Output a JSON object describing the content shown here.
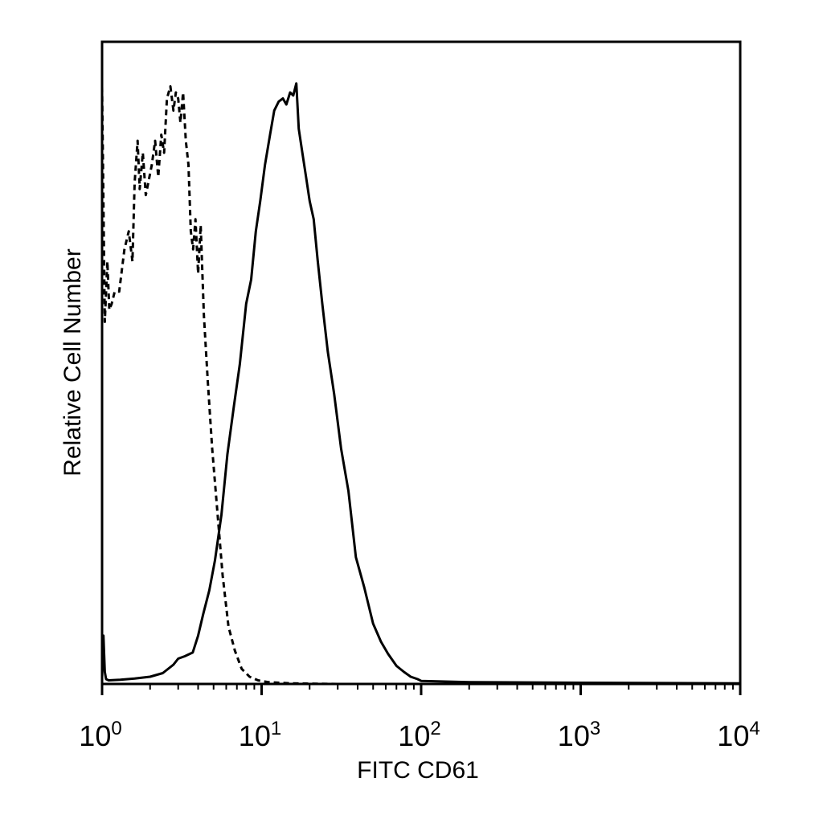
{
  "chart_data": {
    "type": "line",
    "title": "",
    "xlabel": "FITC CD61",
    "ylabel": "Relative Cell Number",
    "x_scale": "log",
    "xlim": [
      1,
      10000
    ],
    "ylim": [
      0,
      100
    ],
    "grid": false,
    "legend": "none",
    "x_ticks": [
      {
        "base": "10",
        "exp": "0",
        "value": 1
      },
      {
        "base": "10",
        "exp": "1",
        "value": 10
      },
      {
        "base": "10",
        "exp": "2",
        "value": 100
      },
      {
        "base": "10",
        "exp": "3",
        "value": 1000
      },
      {
        "base": "10",
        "exp": "4",
        "value": 10000
      }
    ],
    "series": [
      {
        "style": "dashed",
        "color": "#000000",
        "x": [
          1.0,
          1.04,
          1.08,
          1.11,
          1.15,
          1.2,
          1.28,
          1.38,
          1.47,
          1.55,
          1.6,
          1.67,
          1.72,
          1.8,
          1.88,
          1.98,
          2.05,
          2.15,
          2.25,
          2.35,
          2.45,
          2.55,
          2.68,
          2.8,
          2.9,
          3.0,
          3.1,
          3.22,
          3.35,
          3.48,
          3.6,
          3.72,
          3.85,
          4.0,
          4.15,
          4.35,
          4.6,
          4.9,
          5.3,
          5.7,
          6.2,
          6.8,
          7.5,
          8.4,
          9.5,
          11,
          13,
          15,
          20,
          30,
          40,
          60,
          100,
          1000,
          10000
        ],
        "y": [
          99,
          60,
          70,
          62,
          63,
          65,
          65,
          72,
          75,
          70,
          83,
          90,
          82,
          88,
          81,
          84,
          86,
          90,
          84,
          91,
          88,
          97,
          99,
          95,
          98,
          97,
          93,
          98,
          90,
          86,
          75,
          72,
          77,
          68,
          76,
          61,
          50,
          39,
          28,
          18,
          9.5,
          5.5,
          2.5,
          1.2,
          0.6,
          0.3,
          0.2,
          0.1,
          0.05,
          0,
          0,
          0,
          0,
          0,
          0
        ]
      },
      {
        "style": "solid",
        "color": "#000000",
        "x": [
          1.0,
          1.02,
          1.04,
          1.06,
          1.1,
          1.3,
          1.6,
          2.0,
          2.4,
          2.8,
          3.0,
          3.3,
          3.7,
          4.0,
          4.3,
          4.7,
          5.1,
          5.6,
          6.1,
          6.7,
          7.3,
          8.0,
          8.6,
          9.2,
          9.8,
          10.5,
          11.3,
          12.0,
          12.8,
          13.6,
          14.3,
          15.1,
          15.8,
          16.5,
          17.1,
          18.0,
          19.0,
          20.0,
          21.2,
          22.5,
          24.0,
          26.0,
          28.5,
          31.5,
          35,
          39,
          44,
          50,
          56,
          62,
          70,
          78,
          86,
          95,
          100,
          200,
          1000,
          10000
        ],
        "y": [
          1,
          8,
          2,
          0.8,
          0.6,
          0.7,
          0.9,
          1.2,
          1.8,
          3.2,
          4.2,
          4.6,
          5.2,
          8,
          11.5,
          15.5,
          20.5,
          28,
          38,
          46,
          53,
          63,
          67,
          75,
          80,
          86,
          91,
          95,
          96.5,
          97,
          96,
          98,
          97.5,
          99.5,
          92,
          88,
          84,
          80,
          77,
          70,
          63,
          55,
          48,
          39,
          32,
          21,
          16,
          10,
          7,
          5,
          3,
          2,
          1.2,
          0.8,
          0.5,
          0.3,
          0.2,
          0.1
        ]
      }
    ]
  }
}
